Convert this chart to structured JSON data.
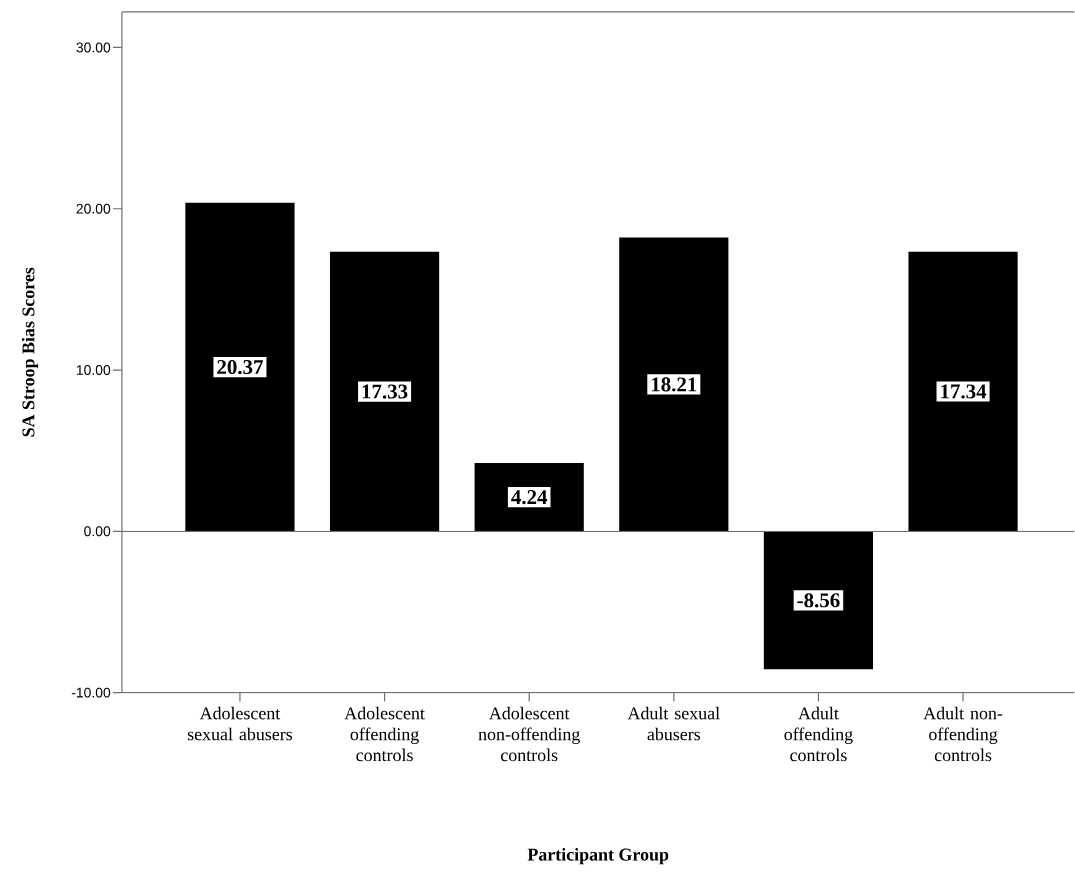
{
  "chart_data": {
    "type": "bar",
    "xlabel": "Participant Group",
    "ylabel": "SA Stroop Bias Scores",
    "categories": [
      "Adolescent sexual abusers",
      "Adolescent offending controls",
      "Adolescent non-offending controls",
      "Adult sexual abusers",
      "Adult offending controls",
      "Adult non-offending controls"
    ],
    "values": [
      20.37,
      17.33,
      4.24,
      18.21,
      -8.56,
      17.34
    ],
    "color": "#000000",
    "ylim": [
      -10,
      32.2
    ],
    "yticks": [
      {
        "value": -10,
        "label": "-10.00"
      },
      {
        "value": 0,
        "label": "0.00"
      },
      {
        "value": 10,
        "label": "10.00"
      },
      {
        "value": 20,
        "label": "20.00"
      },
      {
        "value": 30,
        "label": "30.00"
      }
    ],
    "ref_lines": [
      {
        "axis": "y",
        "value": 0,
        "color": "#6e6e6e"
      }
    ],
    "data_labels": true,
    "grid": false
  }
}
